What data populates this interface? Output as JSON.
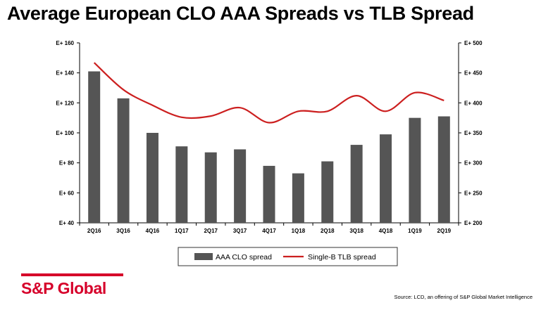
{
  "title": "Average European CLO AAA Spreads vs TLB Spread",
  "brand": "S&P Global",
  "source": "Source: LCD, an offering of S&P Global Market Intelligence",
  "colors": {
    "bars": "#555555",
    "line": "#cc1f1f",
    "brand": "#d6002a"
  },
  "chart_data": {
    "type": "bar+line",
    "categories": [
      "2Q16",
      "3Q16",
      "4Q16",
      "1Q17",
      "2Q17",
      "3Q17",
      "4Q17",
      "1Q18",
      "2Q18",
      "3Q18",
      "4Q18",
      "1Q19",
      "2Q19"
    ],
    "series": [
      {
        "name": "AAA CLO spread",
        "type": "bar",
        "axis": "left",
        "values": [
          141,
          123,
          100,
          91,
          87,
          89,
          78,
          73,
          81,
          92,
          99,
          110,
          111
        ]
      },
      {
        "name": "Single-B TLB spread",
        "type": "line",
        "axis": "right",
        "values": [
          467,
          422,
          396,
          376,
          378,
          392,
          367,
          386,
          386,
          412,
          386,
          417,
          404
        ]
      }
    ],
    "y_left": {
      "min": 40,
      "max": 160,
      "step": 20,
      "tick_labels": [
        "E+ 40",
        "E+ 60",
        "E+ 80",
        "E+ 100",
        "E+ 120",
        "E+ 140",
        "E+ 160"
      ]
    },
    "y_right": {
      "min": 200,
      "max": 500,
      "step": 50,
      "tick_labels": [
        "E+ 200",
        "E+ 250",
        "E+ 300",
        "E+ 350",
        "E+ 400",
        "E+ 450",
        "E+ 500"
      ]
    },
    "legend": {
      "position": "bottom",
      "entries": [
        "AAA CLO spread",
        "Single-B TLB spread"
      ]
    },
    "grid": false
  }
}
